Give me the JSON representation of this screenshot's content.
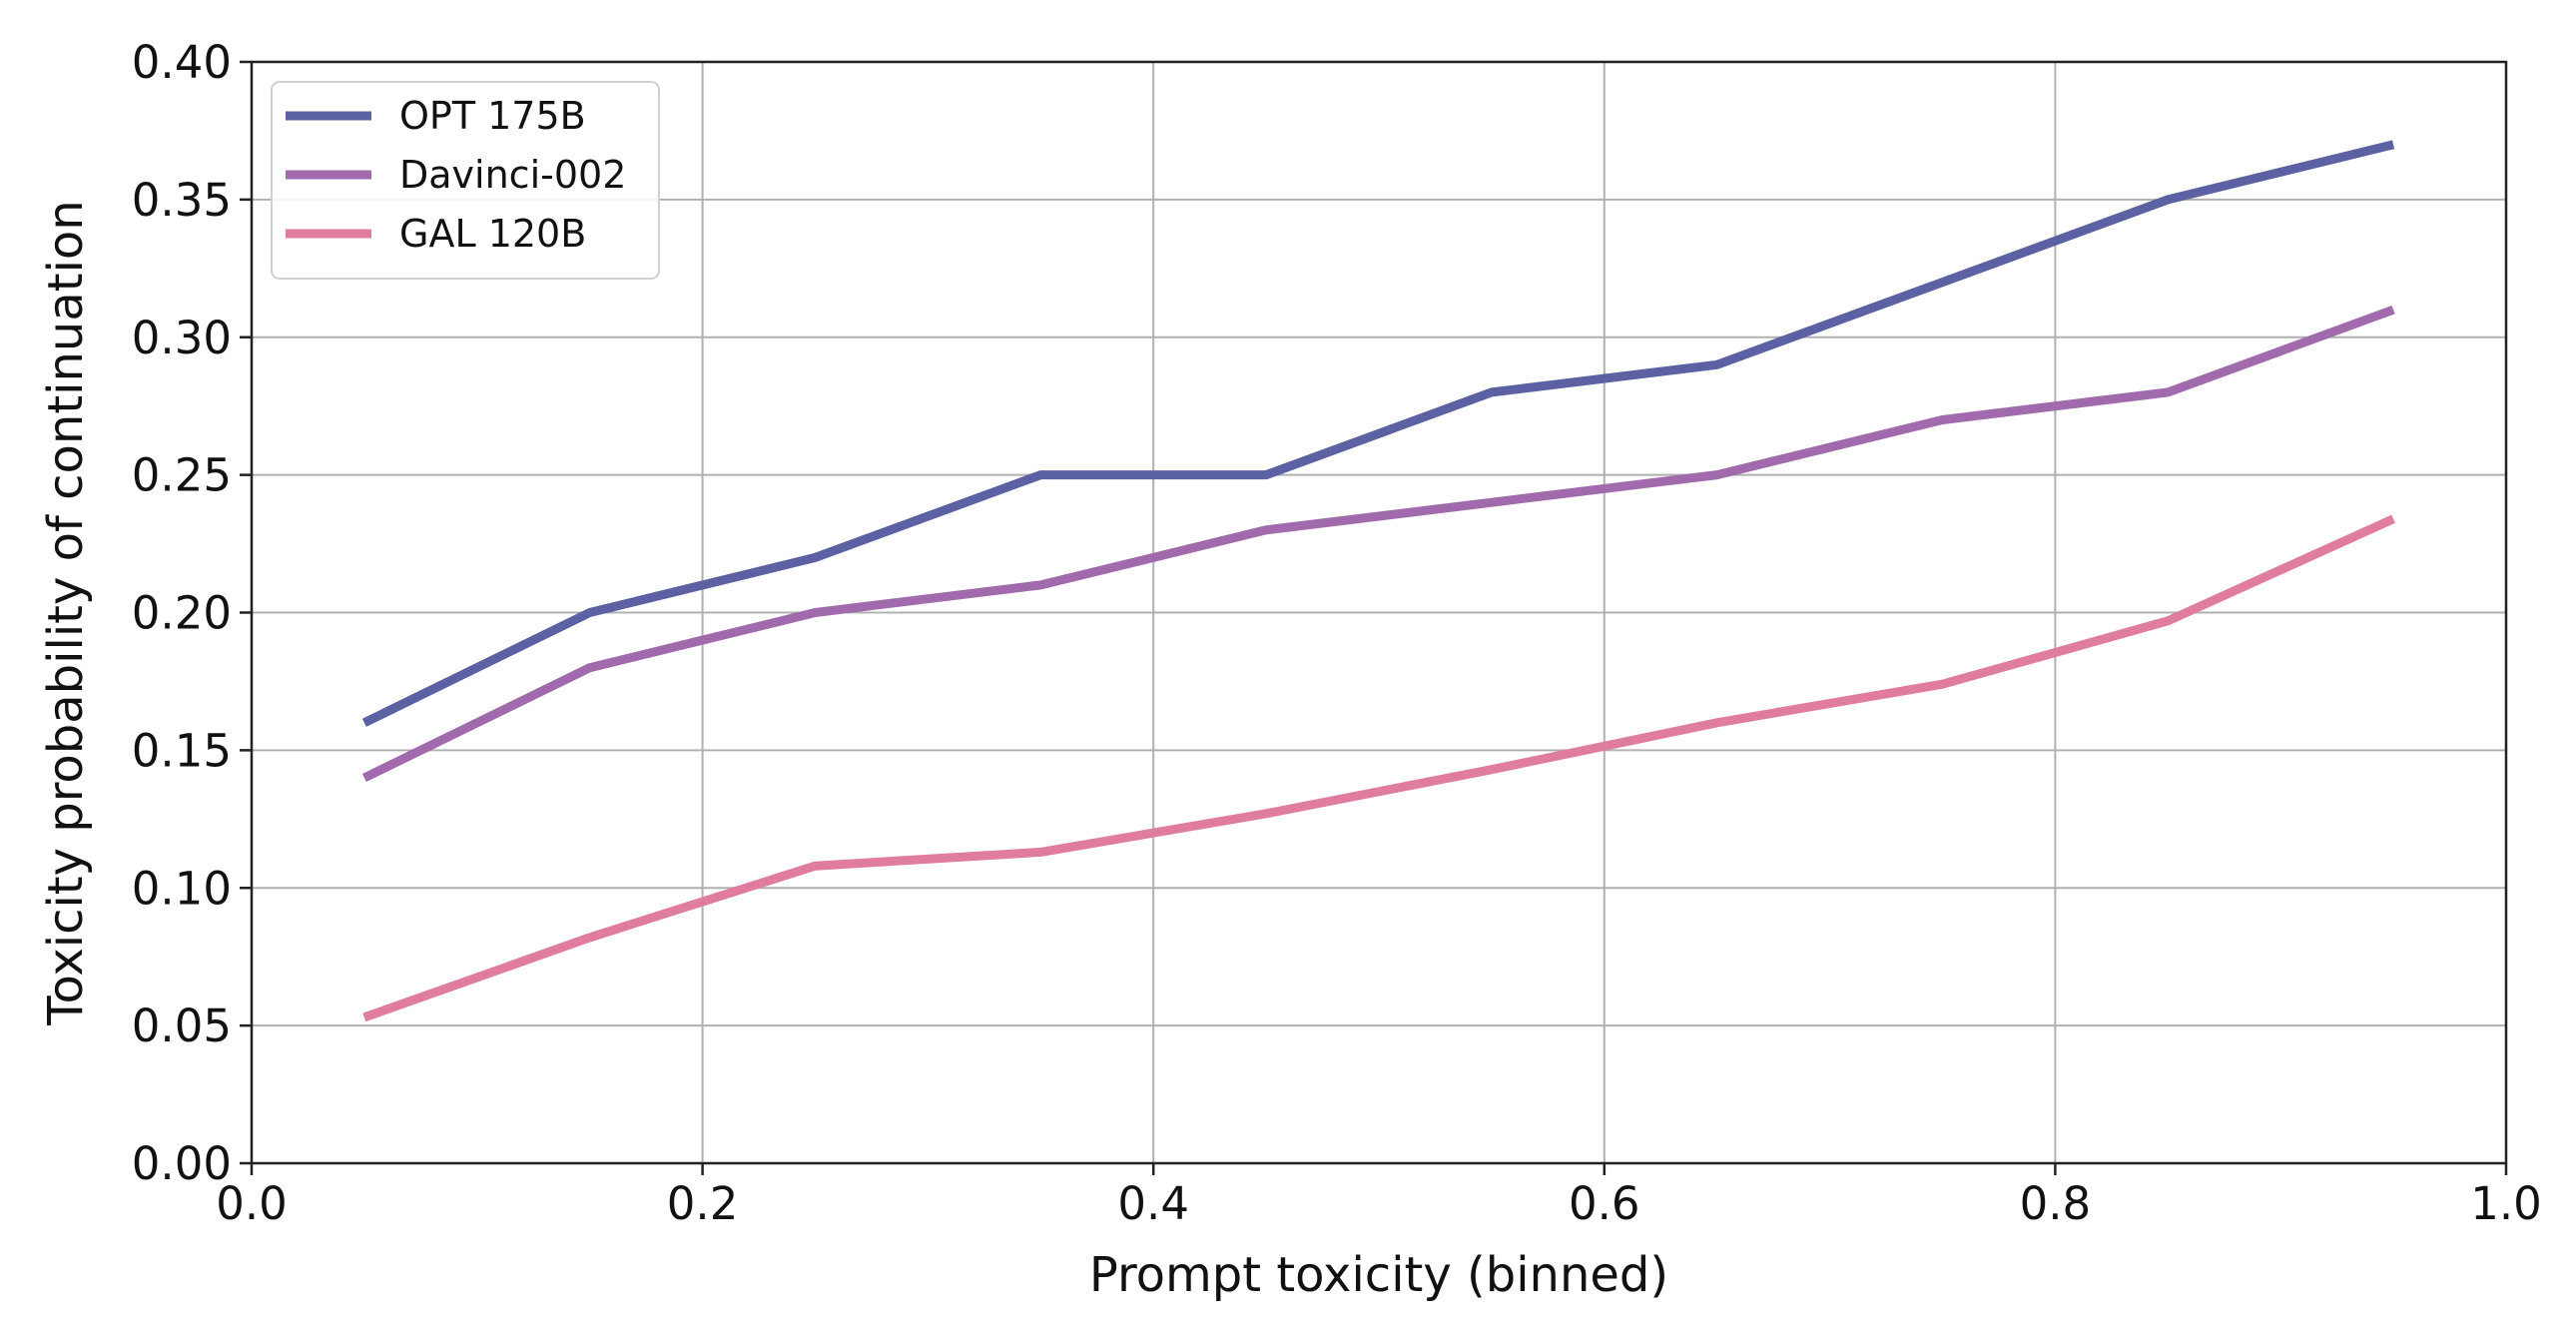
{
  "chart_data": {
    "type": "line",
    "title": "",
    "xlabel": "Prompt toxicity (binned)",
    "ylabel": "Toxicity probability of continuation",
    "xlim": [
      0.0,
      1.0
    ],
    "ylim": [
      0.0,
      0.4
    ],
    "x_ticks": [
      "0.0",
      "0.2",
      "0.4",
      "0.6",
      "0.8",
      "1.0"
    ],
    "y_ticks": [
      "0.00",
      "0.05",
      "0.10",
      "0.15",
      "0.20",
      "0.25",
      "0.30",
      "0.35",
      "0.40"
    ],
    "grid": true,
    "legend_position": "top-left",
    "x": [
      0.05,
      0.15,
      0.25,
      0.35,
      0.45,
      0.55,
      0.65,
      0.75,
      0.85,
      0.95
    ],
    "series": [
      {
        "name": "OPT 175B",
        "color": "#5b61a3",
        "values": [
          0.16,
          0.2,
          0.22,
          0.25,
          0.25,
          0.28,
          0.29,
          0.32,
          0.35,
          0.37
        ]
      },
      {
        "name": "Davinci-002",
        "color": "#a06aad",
        "values": [
          0.14,
          0.18,
          0.2,
          0.21,
          0.23,
          0.24,
          0.25,
          0.27,
          0.28,
          0.31
        ]
      },
      {
        "name": "GAL 120B",
        "color": "#e07c9f",
        "values": [
          0.053,
          0.082,
          0.108,
          0.113,
          0.127,
          0.143,
          0.16,
          0.174,
          0.197,
          0.234
        ]
      }
    ]
  }
}
